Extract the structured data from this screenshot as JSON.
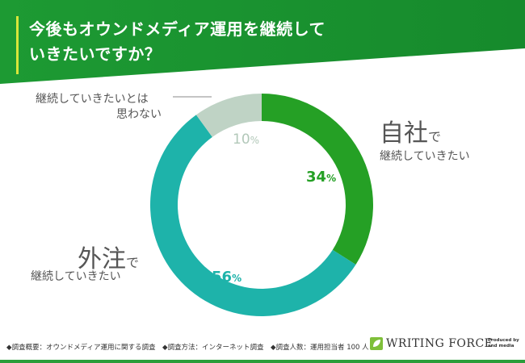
{
  "header": {
    "title_line1": "今後もオウンドメディア運用を継続して",
    "title_line2": "いきたいですか？"
  },
  "chart_data": {
    "type": "pie",
    "title": "今後もオウンドメディア運用を継続していきたいですか？",
    "donut": true,
    "unit": "%",
    "slices": [
      {
        "name": "自社で継続していきたい",
        "value": 34,
        "color": "#25a025"
      },
      {
        "name": "外注で継続していきたい",
        "value": 56,
        "color": "#1eb3aa"
      },
      {
        "name": "継続していきたいとは思わない",
        "value": 10,
        "color": "#bfd3c5"
      }
    ]
  },
  "labels": {
    "inhouse_big": "自社",
    "inhouse_de": "で",
    "inhouse_sub": "継続していきたい",
    "inhouse_pct": "34",
    "outsource_big": "外注",
    "outsource_de": "で",
    "outsource_sub": "継続していきたい",
    "outsource_pct": "56",
    "no_line1": "継続していきたいとは",
    "no_line2": "思わない",
    "no_pct": "10",
    "unit": "%"
  },
  "footer": {
    "note": "◆調査概要：オウンドメディア運用に関する調査　◆調査方法：インターネット調査　◆調査人数：運用担当者 100 人",
    "logo": "WRITING FORCE",
    "produced_by": "Produced by",
    "produced_by_org": "and media"
  },
  "colors": {
    "banner_green": "#1f9b34",
    "banner_dark": "#17842a"
  }
}
